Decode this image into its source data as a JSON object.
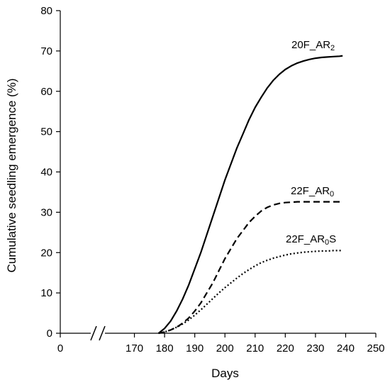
{
  "chart_data": {
    "type": "line",
    "xlabel": "Days",
    "ylabel": "Cumulative seedling emergence (%)",
    "xlim": [
      160,
      250
    ],
    "ylim": [
      0,
      80
    ],
    "x_ticks": [
      "0",
      "170",
      "180",
      "190",
      "200",
      "210",
      "220",
      "230",
      "240",
      "250"
    ],
    "y_ticks": [
      "0",
      "10",
      "20",
      "30",
      "40",
      "50",
      "60",
      "70",
      "80"
    ],
    "axis_break": "between 0 and 170",
    "grid": false,
    "legend": "none (labels placed near line ends)",
    "series": [
      {
        "name": "20F_AR",
        "subscript": "2",
        "line_style": "solid",
        "color": "#000000",
        "x": [
          178,
          180,
          182,
          184,
          186,
          188,
          190,
          192,
          194,
          196,
          198,
          200,
          202,
          204,
          206,
          208,
          210,
          212,
          214,
          216,
          218,
          220,
          222,
          224,
          226,
          228,
          230,
          232,
          234,
          236,
          238,
          239
        ],
        "y": [
          0,
          1.2,
          3,
          5.5,
          8.5,
          12,
          16,
          20,
          24.5,
          29,
          33.5,
          38,
          42,
          46,
          49.5,
          53,
          56,
          58.5,
          60.8,
          62.7,
          64.2,
          65.4,
          66.3,
          67,
          67.5,
          67.9,
          68.2,
          68.4,
          68.5,
          68.6,
          68.7,
          68.8
        ]
      },
      {
        "name": "22F_AR",
        "subscript": "0",
        "line_style": "dashed",
        "color": "#000000",
        "x": [
          178,
          180,
          182,
          184,
          186,
          188,
          190,
          192,
          194,
          196,
          198,
          200,
          202,
          204,
          206,
          208,
          210,
          212,
          214,
          216,
          218,
          220,
          222,
          224,
          226,
          228,
          230,
          232,
          234,
          236,
          238,
          239
        ],
        "y": [
          0,
          0.3,
          0.8,
          1.5,
          2.5,
          3.8,
          5.5,
          7.5,
          10,
          12.5,
          15.5,
          18.5,
          21,
          23.5,
          25.5,
          27.5,
          29,
          30.3,
          31.2,
          31.8,
          32.2,
          32.4,
          32.5,
          32.6,
          32.6,
          32.6,
          32.6,
          32.6,
          32.6,
          32.6,
          32.6,
          32.6
        ]
      },
      {
        "name": "22F_AR",
        "subscript": "0",
        "suffix": "S",
        "line_style": "dotted",
        "color": "#000000",
        "x": [
          178,
          180,
          182,
          184,
          186,
          188,
          190,
          192,
          194,
          196,
          198,
          200,
          202,
          204,
          206,
          208,
          210,
          212,
          214,
          216,
          218,
          220,
          222,
          224,
          226,
          228,
          230,
          232,
          234,
          236,
          238,
          239
        ],
        "y": [
          0,
          0.3,
          0.8,
          1.5,
          2.3,
          3.3,
          4.5,
          5.8,
          7.2,
          8.6,
          10,
          11.3,
          12.5,
          13.7,
          14.8,
          15.8,
          16.7,
          17.5,
          18.1,
          18.6,
          19,
          19.4,
          19.7,
          19.9,
          20.1,
          20.2,
          20.3,
          20.4,
          20.4,
          20.5,
          20.5,
          20.5
        ]
      }
    ]
  }
}
